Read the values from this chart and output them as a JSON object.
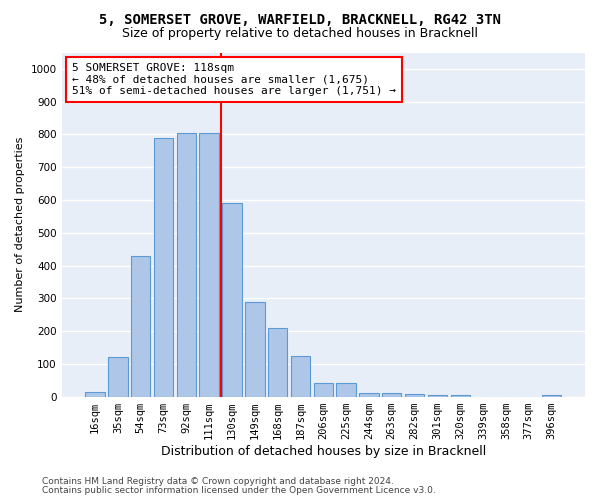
{
  "title1": "5, SOMERSET GROVE, WARFIELD, BRACKNELL, RG42 3TN",
  "title2": "Size of property relative to detached houses in Bracknell",
  "xlabel": "Distribution of detached houses by size in Bracknell",
  "ylabel": "Number of detached properties",
  "categories": [
    "16sqm",
    "35sqm",
    "54sqm",
    "73sqm",
    "92sqm",
    "111sqm",
    "130sqm",
    "149sqm",
    "168sqm",
    "187sqm",
    "206sqm",
    "225sqm",
    "244sqm",
    "263sqm",
    "282sqm",
    "301sqm",
    "320sqm",
    "339sqm",
    "358sqm",
    "377sqm",
    "396sqm"
  ],
  "values": [
    15,
    120,
    430,
    790,
    805,
    805,
    590,
    290,
    210,
    125,
    40,
    40,
    12,
    10,
    8,
    5,
    5,
    0,
    0,
    0,
    5
  ],
  "bar_color": "#aec6e8",
  "bar_edge_color": "#5b9bd5",
  "vline_x": 5.5,
  "vline_color": "red",
  "annotation_text": "5 SOMERSET GROVE: 118sqm\n← 48% of detached houses are smaller (1,675)\n51% of semi-detached houses are larger (1,751) →",
  "annotation_box_color": "white",
  "annotation_box_edge_color": "red",
  "ylim": [
    0,
    1050
  ],
  "yticks": [
    0,
    100,
    200,
    300,
    400,
    500,
    600,
    700,
    800,
    900,
    1000
  ],
  "footer1": "Contains HM Land Registry data © Crown copyright and database right 2024.",
  "footer2": "Contains public sector information licensed under the Open Government Licence v3.0.",
  "bg_color": "#e8eef7",
  "grid_color": "white",
  "title1_fontsize": 10,
  "title2_fontsize": 9,
  "xlabel_fontsize": 9,
  "ylabel_fontsize": 8,
  "tick_fontsize": 7.5,
  "footer_fontsize": 6.5,
  "ann_fontsize": 8
}
